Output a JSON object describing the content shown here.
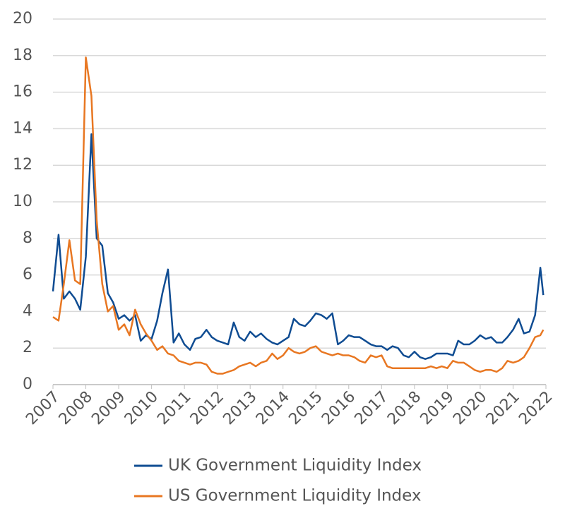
{
  "chart_data": {
    "type": "line",
    "x": [
      2007,
      2007.17,
      2007.33,
      2007.5,
      2007.67,
      2007.83,
      2008,
      2008.17,
      2008.33,
      2008.5,
      2008.67,
      2008.83,
      2009,
      2009.17,
      2009.33,
      2009.5,
      2009.67,
      2009.83,
      2010,
      2010.17,
      2010.33,
      2010.5,
      2010.67,
      2010.83,
      2011,
      2011.17,
      2011.33,
      2011.5,
      2011.67,
      2011.83,
      2012,
      2012.17,
      2012.33,
      2012.5,
      2012.67,
      2012.83,
      2013,
      2013.17,
      2013.33,
      2013.5,
      2013.67,
      2013.83,
      2014,
      2014.17,
      2014.33,
      2014.5,
      2014.67,
      2014.83,
      2015,
      2015.17,
      2015.33,
      2015.5,
      2015.67,
      2015.83,
      2016,
      2016.17,
      2016.33,
      2016.5,
      2016.67,
      2016.83,
      2017,
      2017.17,
      2017.33,
      2017.5,
      2017.67,
      2017.83,
      2018,
      2018.17,
      2018.33,
      2018.5,
      2018.67,
      2018.83,
      2019,
      2019.17,
      2019.33,
      2019.5,
      2019.67,
      2019.83,
      2020,
      2020.17,
      2020.33,
      2020.5,
      2020.67,
      2020.83,
      2021,
      2021.17,
      2021.33,
      2021.5,
      2021.67,
      2021.83,
      2021.92
    ],
    "series": [
      {
        "name": "UK Government Liquidity Index",
        "color": "#0f4c92",
        "values": [
          5.1,
          8.2,
          4.7,
          5.1,
          4.7,
          4.1,
          7.0,
          13.7,
          8.0,
          7.6,
          5.0,
          4.5,
          3.6,
          3.8,
          3.5,
          3.8,
          2.4,
          2.7,
          2.5,
          3.5,
          5.0,
          6.3,
          2.3,
          2.8,
          2.2,
          1.9,
          2.5,
          2.6,
          3.0,
          2.6,
          2.4,
          2.3,
          2.2,
          3.4,
          2.6,
          2.4,
          2.9,
          2.6,
          2.8,
          2.5,
          2.3,
          2.2,
          2.4,
          2.6,
          3.6,
          3.3,
          3.2,
          3.5,
          3.9,
          3.8,
          3.6,
          3.9,
          2.2,
          2.4,
          2.7,
          2.6,
          2.6,
          2.4,
          2.2,
          2.1,
          2.1,
          1.9,
          2.1,
          2.0,
          1.6,
          1.5,
          1.8,
          1.5,
          1.4,
          1.5,
          1.7,
          1.7,
          1.7,
          1.6,
          2.4,
          2.2,
          2.2,
          2.4,
          2.7,
          2.5,
          2.6,
          2.3,
          2.3,
          2.6,
          3.0,
          3.6,
          2.8,
          2.9,
          3.8,
          6.4,
          4.9
        ]
      },
      {
        "name": "US Government Liquidity Index",
        "color": "#e87722",
        "values": [
          3.7,
          3.5,
          5.5,
          7.9,
          5.7,
          5.5,
          17.9,
          15.8,
          9.0,
          5.5,
          4.0,
          4.3,
          3.0,
          3.3,
          2.7,
          4.1,
          3.3,
          2.8,
          2.4,
          1.9,
          2.1,
          1.7,
          1.6,
          1.3,
          1.2,
          1.1,
          1.2,
          1.2,
          1.1,
          0.7,
          0.6,
          0.6,
          0.7,
          0.8,
          1.0,
          1.1,
          1.2,
          1.0,
          1.2,
          1.3,
          1.7,
          1.4,
          1.6,
          2.0,
          1.8,
          1.7,
          1.8,
          2.0,
          2.1,
          1.8,
          1.7,
          1.6,
          1.7,
          1.6,
          1.6,
          1.5,
          1.3,
          1.2,
          1.6,
          1.5,
          1.6,
          1.0,
          0.9,
          0.9,
          0.9,
          0.9,
          0.9,
          0.9,
          0.9,
          1.0,
          0.9,
          1.0,
          0.9,
          1.3,
          1.2,
          1.2,
          1.0,
          0.8,
          0.7,
          0.8,
          0.8,
          0.7,
          0.9,
          1.3,
          1.2,
          1.3,
          1.5,
          2.0,
          2.6,
          2.7,
          3.0
        ]
      }
    ],
    "xlim": [
      2007,
      2022
    ],
    "xticks": [
      2007,
      2008,
      2009,
      2010,
      2011,
      2012,
      2013,
      2014,
      2015,
      2016,
      2017,
      2018,
      2019,
      2020,
      2021,
      2022
    ],
    "ylim": [
      0,
      20
    ],
    "yticks": [
      0,
      2,
      4,
      6,
      8,
      10,
      12,
      14,
      16,
      18,
      20
    ],
    "grid": true,
    "legend": "bottom"
  }
}
